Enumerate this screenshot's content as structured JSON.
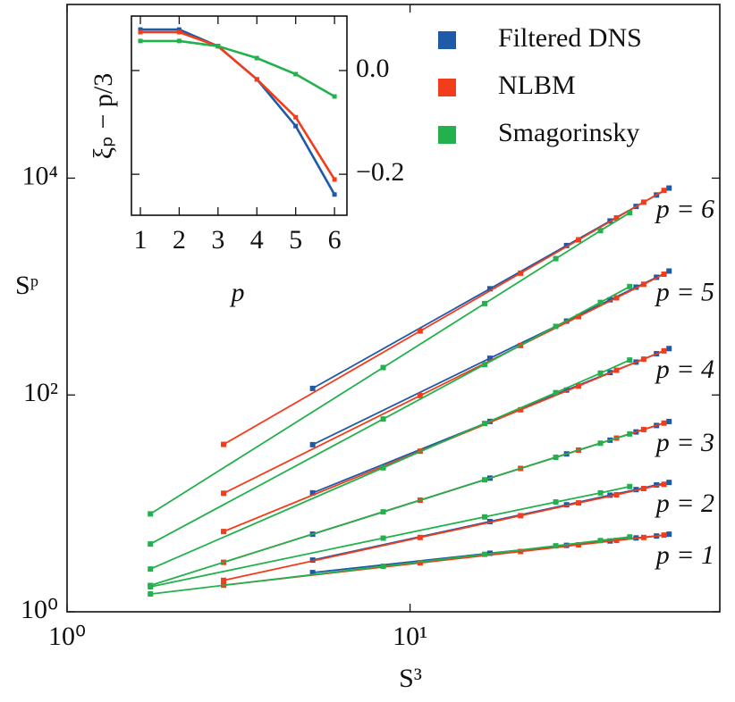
{
  "chart_data": [
    {
      "type": "line",
      "x_label": "S³",
      "y_label": "Sᵖ",
      "xscale": "log",
      "yscale": "log",
      "xlim": [
        1,
        80
      ],
      "ylim": [
        1,
        400000
      ],
      "xticks": [
        {
          "value": 1,
          "label": "10⁰"
        },
        {
          "value": 10,
          "label": "10¹"
        }
      ],
      "yticks": [
        {
          "value": 1,
          "label": "10⁰"
        },
        {
          "value": 100,
          "label": "10²"
        },
        {
          "value": 10000,
          "label": "10⁴"
        }
      ],
      "legend": "upper right",
      "series": [
        {
          "name": "Filtered DNS",
          "color": "#1f5aa8",
          "x": [
            5.2,
            17.1,
            28.6,
            38.3,
            45.6,
            52.3,
            56.9
          ],
          "curves": [
            [
              2.3,
              3.47,
              4.1,
              4.5,
              4.8,
              5.0,
              5.2
            ],
            [
              3.0,
              6.8,
              9.7,
              11.9,
              13.4,
              14.8,
              15.6
            ],
            [
              5.2,
              17.1,
              28.6,
              38.3,
              45.6,
              52.3,
              56.9
            ],
            [
              12.5,
              57,
              111,
              161,
              201,
              240,
              268
            ],
            [
              34.8,
              218,
              480,
              755,
              988,
              1218,
              1390
            ],
            [
              115,
              954,
              2390,
              4025,
              5485,
              6990,
              8100
            ]
          ]
        },
        {
          "name": "NLBM",
          "color": "#f23d1c",
          "x": [
            2.86,
            10.7,
            21,
            31,
            40,
            48,
            55
          ],
          "curves": [
            [
              1.76,
              2.83,
              3.6,
              4.15,
              4.55,
              4.85,
              5.1
            ],
            [
              1.95,
              4.85,
              7.7,
              10.1,
              12.0,
              13.7,
              15.0
            ],
            [
              2.86,
              10.7,
              21,
              31,
              40,
              48,
              55
            ],
            [
              5.5,
              30.3,
              73,
              121,
              169,
              214,
              255
            ],
            [
              12.4,
              98.8,
              286,
              528,
              787,
              1050,
              1300
            ],
            [
              35,
              389,
              1330,
              2700,
              4300,
              6000,
              7700
            ]
          ]
        },
        {
          "name": "Smagorinsky",
          "color": "#22b14c",
          "x": [
            1.75,
            8.35,
            16.5,
            26.6,
            35.9,
            43.7
          ],
          "curves": [
            [
              1.46,
              2.63,
              3.39,
              4.06,
              4.54,
              4.9
            ],
            [
              1.7,
              4.78,
              7.5,
              10.3,
              12.5,
              14.3
            ],
            [
              1.75,
              8.35,
              16.5,
              26.6,
              35.9,
              43.7
            ],
            [
              2.48,
              21.3,
              54.6,
              105,
              159,
              210
            ],
            [
              4.22,
              60,
              191,
              429,
              714,
              1000
            ],
            [
              8.0,
              179,
              697,
              1810,
              3280,
              4800
            ]
          ]
        }
      ],
      "curve_labels": [
        "p = 1",
        "p = 2",
        "p = 3",
        "p = 4",
        "p = 5",
        "p = 6"
      ]
    },
    {
      "type": "line",
      "x_label": "p",
      "y_label": "ξₚ − p/3",
      "x": [
        1,
        2,
        3,
        4,
        5,
        6
      ],
      "xlim": [
        0.77,
        6.32
      ],
      "ylim": [
        -0.279,
        0.105
      ],
      "xticks": [
        1,
        2,
        3,
        4,
        5,
        6
      ],
      "yticks": [
        {
          "value": 0,
          "label": "0.0"
        },
        {
          "value": -0.2,
          "label": "−0.2"
        }
      ],
      "y_axis_side": "right",
      "series": [
        {
          "color": "#1f5aa8",
          "values": [
            0.079,
            0.079,
            0.047,
            -0.017,
            -0.107,
            -0.239
          ]
        },
        {
          "color": "#f23d1c",
          "values": [
            0.074,
            0.074,
            0.047,
            -0.017,
            -0.09,
            -0.21
          ]
        },
        {
          "color": "#22b14c",
          "values": [
            0.057,
            0.057,
            0.047,
            0.024,
            -0.007,
            -0.05
          ]
        }
      ]
    }
  ]
}
